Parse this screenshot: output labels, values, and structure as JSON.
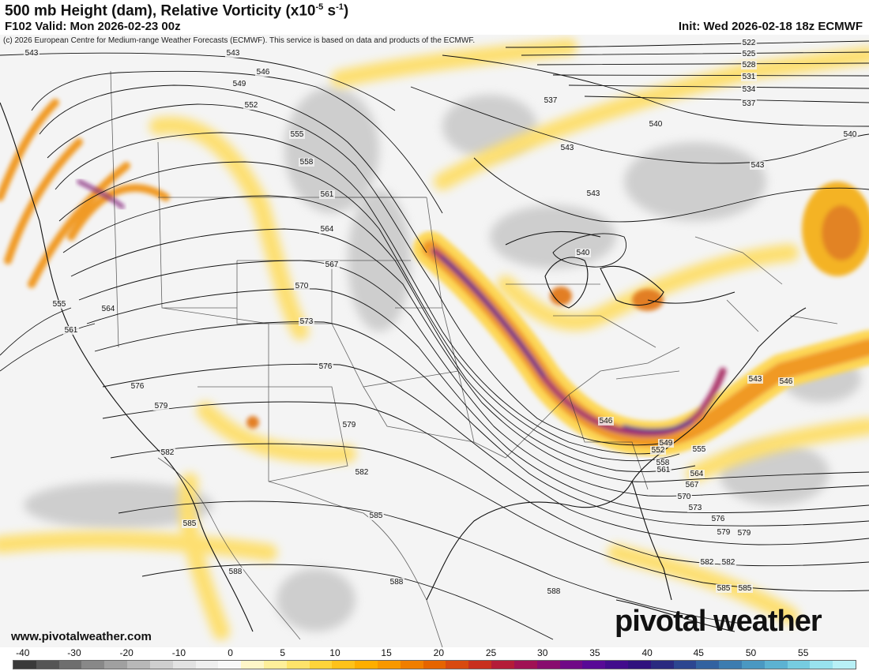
{
  "header": {
    "title_main": "500 mb Height (dam), Relative Vorticity (x10",
    "title_exp": "-5",
    "title_unit": " s",
    "title_exp2": "-1",
    "title_end": ")",
    "valid": "F102 Valid: Mon 2026-02-23 00z",
    "init": "Init: Wed 2026-02-18 18z ECMWF",
    "credit": "(c) 2026 European Centre for Medium-range Weather Forecasts (ECMWF). This service is based on data and products of the ECMWF."
  },
  "footer": {
    "website": "www.pivotalweather.com",
    "brand": "pivotal weather"
  },
  "colorbar": {
    "ticks": [
      "-40",
      "-30",
      "-20",
      "-10",
      "0",
      "5",
      "10",
      "15",
      "20",
      "25",
      "30",
      "35",
      "40",
      "45",
      "50",
      "55"
    ],
    "colors": [
      "#3a3a3a",
      "#555555",
      "#6e6e6e",
      "#888888",
      "#a0a0a0",
      "#b8b8b8",
      "#cfcfcf",
      "#e2e2e2",
      "#efefef",
      "#f8f8f8",
      "#fff6c8",
      "#ffef9a",
      "#ffe36a",
      "#ffd43a",
      "#ffc21a",
      "#ffae00",
      "#f89800",
      "#f07e00",
      "#e66400",
      "#d84a10",
      "#c8301e",
      "#b41c38",
      "#a01254",
      "#880c6e",
      "#700a86",
      "#580a96",
      "#420c8c",
      "#30127e",
      "#2a2a80",
      "#2c4690",
      "#3262a0",
      "#3c7cb0",
      "#4a98c2",
      "#5cb2d2",
      "#76cce0",
      "#98e2ee",
      "#b8f0f6"
    ]
  },
  "map": {
    "projection": "Lambert conformal, CONUS",
    "contour_labels": [
      "543",
      "543",
      "546",
      "549",
      "552",
      "555",
      "558",
      "561",
      "564",
      "567",
      "570",
      "573",
      "576",
      "579",
      "582",
      "585",
      "588",
      "555",
      "564",
      "561",
      "576",
      "579",
      "582",
      "585",
      "588",
      "579",
      "582",
      "585",
      "588",
      "540",
      "537",
      "543",
      "540",
      "543",
      "522",
      "525",
      "528",
      "531",
      "534",
      "537",
      "540",
      "543",
      "546",
      "549",
      "552",
      "555",
      "558",
      "561",
      "564",
      "567",
      "570",
      "573",
      "576",
      "579",
      "582",
      "585",
      "543",
      "546"
    ]
  }
}
